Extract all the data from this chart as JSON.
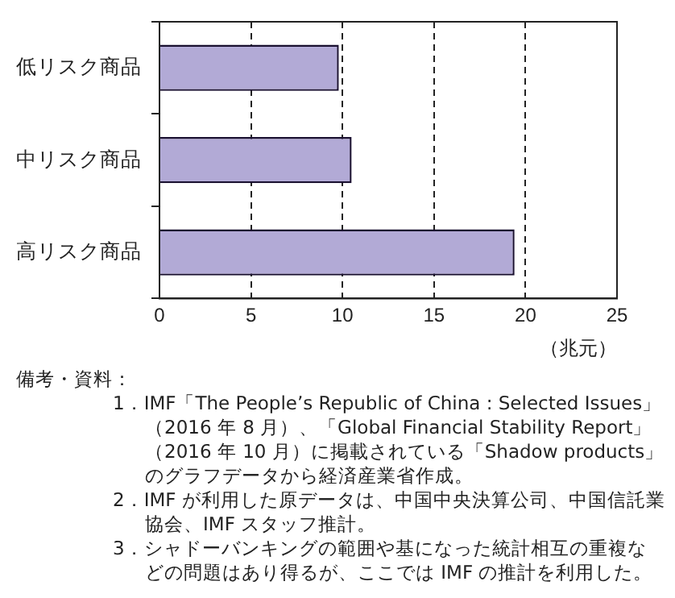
{
  "chart_data": {
    "type": "bar",
    "orientation": "horizontal",
    "categories": [
      "低リスク商品",
      "中リスク商品",
      "高リスク商品"
    ],
    "series": [
      {
        "color": "#b2aad6",
        "values": [
          9.8,
          10.5,
          19.4
        ]
      }
    ],
    "xlim": [
      0,
      25
    ],
    "xticks": [
      0,
      5,
      10,
      15,
      20,
      25
    ],
    "xlabel": "（兆元）",
    "grid": "x",
    "legend": false,
    "annotations": [
      "備考・資料：",
      "1．IMF「The People’s Republic of China : Selected Issues」（2016 年 8 月）、「Global Financial Stability Report」（2016 年 10 月）に掲載されている「Shadow products」のグラフデータから経済産業省作成。",
      "2．IMF が利用した原データは、中国中央決算公司、中国信託業協会、IMF スタッフ推計。",
      "3．シャドーバンキングの範囲や基になった統計相互の重複などの問題はあり得るが、ここでは IMF の推計を利用した。"
    ]
  }
}
